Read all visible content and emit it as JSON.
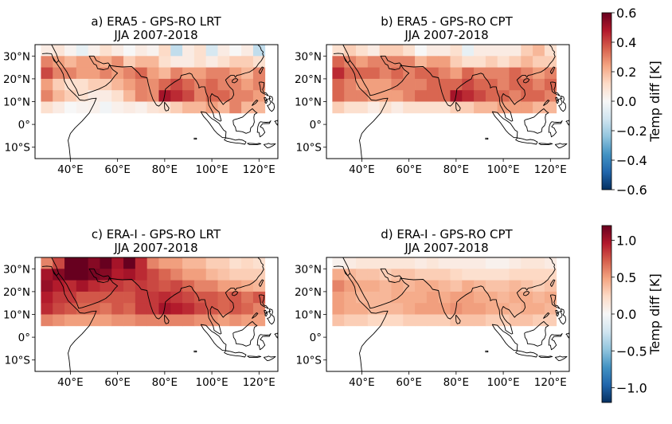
{
  "panels": [
    {
      "title": "a) ERA5 - GPS-RO LRT",
      "subtitle": "JJA 2007-2018"
    },
    {
      "title": "b) ERA5 - GPS-RO CPT",
      "subtitle": "JJA 2007-2018"
    },
    {
      "title": "c) ERA-I - GPS-RO LRT",
      "subtitle": "JJA 2007-2018"
    },
    {
      "title": "d) ERA-I - GPS-RO CPT",
      "subtitle": "JJA 2007-2018"
    }
  ],
  "map": {
    "lon_ticks": [
      "40°E",
      "60°E",
      "80°E",
      "100°E",
      "120°E"
    ],
    "lat_ticks": [
      "30°N",
      "20°N",
      "10°N",
      "0°",
      "10°S"
    ],
    "lon_range": [
      25,
      128
    ],
    "lat_range": [
      -15,
      35
    ]
  },
  "colorbars": [
    {
      "label": "Temp diff [K]",
      "ticks": [
        "0.6",
        "0.4",
        "0.2",
        "0.0",
        "−0.2",
        "−0.4",
        "−0.6"
      ],
      "vmin": -0.6,
      "vmax": 0.6
    },
    {
      "label": "Temp diff [K]",
      "ticks": [
        "1.0",
        "0.5",
        "0.0",
        "−0.5",
        "−1.0"
      ],
      "vmin": -1.2,
      "vmax": 1.2
    }
  ],
  "colormap": {
    "name": "RdBu_r",
    "stops": [
      "#053061",
      "#2166ac",
      "#4393c3",
      "#92c5de",
      "#d1e5f0",
      "#f7f7f7",
      "#fddbc7",
      "#f4a582",
      "#d6604d",
      "#b2182b",
      "#67001f"
    ]
  },
  "chart_data": [
    {
      "type": "heatmap",
      "panel": "a",
      "x_lon_start": 30,
      "y_lat_start": 32.5,
      "cell_deg": 5,
      "rows": 6,
      "cols": 19,
      "values": [
        [
          0.05,
          0.08,
          0.02,
          -0.05,
          0.03,
          0.1,
          0.05,
          0,
          0.05,
          0.02,
          0.12,
          -0.15,
          0.05,
          0.1,
          -0.1,
          0.05,
          0,
          0.05,
          -0.15
        ],
        [
          0.3,
          0.25,
          0.2,
          0.25,
          0.25,
          0.22,
          0.28,
          0.15,
          0.2,
          0.2,
          0.1,
          0.05,
          0.05,
          0.1,
          0.05,
          0.1,
          0.15,
          0.15,
          0.1
        ],
        [
          0.4,
          0.3,
          0.3,
          0.25,
          0.25,
          0.3,
          0.25,
          0.3,
          0.35,
          0.25,
          0.2,
          0.3,
          0.25,
          0.25,
          0.3,
          0.3,
          0.25,
          0.2,
          0.3
        ],
        [
          0.25,
          0.15,
          0.1,
          0.1,
          0.15,
          0.15,
          0.2,
          0.25,
          0.3,
          0.28,
          0.35,
          0.4,
          0.35,
          0.3,
          0.35,
          0.3,
          0.3,
          0.25,
          0.3
        ],
        [
          0.3,
          0.2,
          0.15,
          0.1,
          0.05,
          0.05,
          0.1,
          0.2,
          0.3,
          0.28,
          0.5,
          0.45,
          0.4,
          0.3,
          0.35,
          0.35,
          0.3,
          0.3,
          0.25
        ],
        [
          0.1,
          0.05,
          0,
          0.02,
          0.03,
          -0.02,
          0.03,
          0.05,
          0.03,
          0.08,
          0.1,
          0.15,
          0.2,
          0.2,
          0.25,
          0.2,
          0.3,
          0.2,
          0.2
        ]
      ]
    },
    {
      "type": "heatmap",
      "panel": "b",
      "x_lon_start": 30,
      "y_lat_start": 32.5,
      "cell_deg": 5,
      "rows": 6,
      "cols": 19,
      "values": [
        [
          0.1,
          0.15,
          0.1,
          0.05,
          0.15,
          0.15,
          0.1,
          0,
          0.05,
          0.05,
          0.1,
          -0.05,
          0.05,
          0.05,
          0.05,
          0.05,
          0.15,
          0.2,
          0.1
        ],
        [
          0.35,
          0.3,
          0.25,
          0.3,
          0.3,
          0.3,
          0.3,
          0.2,
          0.25,
          0.25,
          0.15,
          0.1,
          0.1,
          0.15,
          0.1,
          0.15,
          0.2,
          0.15,
          0.15
        ],
        [
          0.45,
          0.35,
          0.35,
          0.35,
          0.3,
          0.35,
          0.3,
          0.35,
          0.35,
          0.3,
          0.25,
          0.35,
          0.3,
          0.3,
          0.3,
          0.35,
          0.3,
          0.25,
          0.3
        ],
        [
          0.35,
          0.3,
          0.25,
          0.25,
          0.25,
          0.3,
          0.3,
          0.3,
          0.35,
          0.35,
          0.35,
          0.4,
          0.35,
          0.35,
          0.3,
          0.35,
          0.35,
          0.3,
          0.35
        ],
        [
          0.35,
          0.3,
          0.3,
          0.25,
          0.25,
          0.25,
          0.3,
          0.35,
          0.35,
          0.35,
          0.5,
          0.45,
          0.4,
          0.35,
          0.35,
          0.3,
          0.35,
          0.35,
          0.3
        ],
        [
          0.15,
          0.1,
          0.1,
          0.05,
          0.1,
          0.05,
          0.1,
          0.1,
          0.1,
          0.1,
          0.15,
          0.15,
          0.2,
          0.2,
          0.25,
          0.25,
          0.25,
          0.2,
          0.2
        ]
      ]
    },
    {
      "type": "heatmap",
      "panel": "c",
      "x_lon_start": 30,
      "y_lat_start": 32.5,
      "cell_deg": 5,
      "rows": 6,
      "cols": 19,
      "values": [
        [
          0.6,
          0.8,
          1.2,
          1.2,
          1.1,
          1.2,
          1,
          1.2,
          0.9,
          0.6,
          0.5,
          0.5,
          0.4,
          0.4,
          0.3,
          0.3,
          0.2,
          0.25,
          0.2
        ],
        [
          1,
          1.1,
          1.2,
          1.2,
          1.15,
          1.1,
          0.95,
          1,
          0.9,
          0.8,
          0.7,
          0.6,
          0.5,
          0.5,
          0.4,
          0.35,
          0.3,
          0.3,
          0.3
        ],
        [
          1.05,
          0.95,
          0.9,
          1,
          0.9,
          0.85,
          0.85,
          0.8,
          0.85,
          0.8,
          0.75,
          0.8,
          0.7,
          0.6,
          0.6,
          0.5,
          0.5,
          0.45,
          0.4
        ],
        [
          0.95,
          0.85,
          0.85,
          0.75,
          0.75,
          0.75,
          0.75,
          0.75,
          0.85,
          0.85,
          0.9,
          0.85,
          0.8,
          0.75,
          0.75,
          0.7,
          0.75,
          0.65,
          0.75
        ],
        [
          0.9,
          0.8,
          0.75,
          0.7,
          0.7,
          0.65,
          0.75,
          0.7,
          0.85,
          0.85,
          1,
          0.95,
          0.9,
          0.8,
          0.75,
          0.7,
          0.75,
          0.7,
          0.6
        ],
        [
          0.6,
          0.55,
          0.5,
          0.5,
          0.5,
          0.5,
          0.55,
          0.55,
          0.6,
          0.6,
          0.6,
          0.6,
          0.6,
          0.55,
          0.55,
          0.5,
          0.55,
          0.5,
          0.5
        ]
      ]
    },
    {
      "type": "heatmap",
      "panel": "d",
      "x_lon_start": 30,
      "y_lat_start": 32.5,
      "cell_deg": 5,
      "rows": 6,
      "cols": 19,
      "values": [
        [
          0.05,
          0.1,
          0.15,
          0.15,
          0.15,
          0.15,
          0.15,
          0.1,
          0.15,
          0.1,
          0.1,
          0.1,
          0.1,
          0.05,
          0.05,
          0.1,
          0.15,
          0.15,
          0.1
        ],
        [
          0.45,
          0.4,
          0.35,
          0.35,
          0.3,
          0.35,
          0.35,
          0.3,
          0.3,
          0.3,
          0.25,
          0.2,
          0.2,
          0.2,
          0.2,
          0.25,
          0.25,
          0.25,
          0.25
        ],
        [
          0.6,
          0.5,
          0.45,
          0.45,
          0.4,
          0.45,
          0.4,
          0.45,
          0.45,
          0.4,
          0.35,
          0.45,
          0.4,
          0.35,
          0.35,
          0.4,
          0.35,
          0.3,
          0.35
        ],
        [
          0.5,
          0.45,
          0.4,
          0.4,
          0.4,
          0.45,
          0.45,
          0.45,
          0.5,
          0.45,
          0.5,
          0.5,
          0.45,
          0.45,
          0.4,
          0.45,
          0.45,
          0.4,
          0.45
        ],
        [
          0.5,
          0.45,
          0.45,
          0.4,
          0.4,
          0.4,
          0.45,
          0.5,
          0.5,
          0.5,
          0.55,
          0.5,
          0.5,
          0.45,
          0.45,
          0.4,
          0.45,
          0.45,
          0.4
        ],
        [
          0.35,
          0.3,
          0.3,
          0.25,
          0.25,
          0.25,
          0.3,
          0.3,
          0.3,
          0.3,
          0.35,
          0.35,
          0.35,
          0.3,
          0.3,
          0.35,
          0.35,
          0.3,
          0.3
        ]
      ]
    }
  ]
}
